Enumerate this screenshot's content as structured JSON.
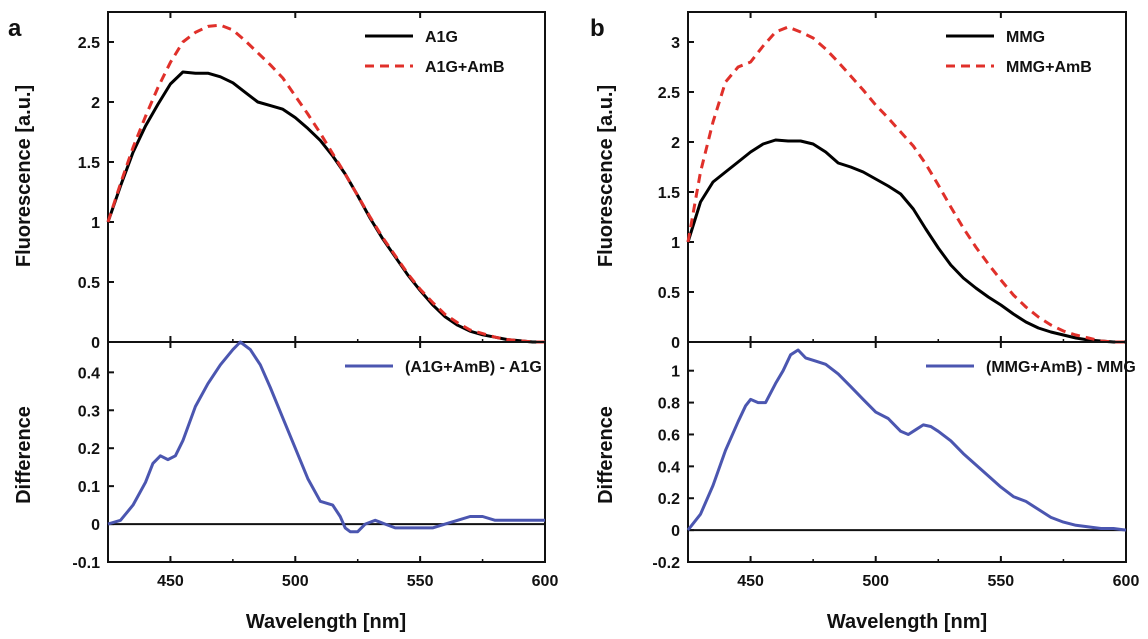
{
  "chart_data": [
    {
      "panel": "a",
      "type": "line",
      "subplot": "top",
      "xlabel": "",
      "ylabel": "Fluorescence [a.u.]",
      "xlim": [
        425,
        600
      ],
      "ylim": [
        0,
        2.75
      ],
      "yticks": [
        "0",
        "0.5",
        "1",
        "1.5",
        "2",
        "2.5"
      ],
      "xticks": [
        "450",
        "500",
        "550",
        "600"
      ],
      "legend_position": "top-right",
      "series": [
        {
          "name": "A1G",
          "color": "#000000",
          "dash": "solid",
          "x": [
            425,
            430,
            435,
            440,
            445,
            450,
            455,
            460,
            465,
            470,
            475,
            480,
            485,
            490,
            495,
            500,
            505,
            510,
            515,
            520,
            525,
            530,
            535,
            540,
            545,
            550,
            555,
            560,
            565,
            570,
            575,
            580,
            585,
            590,
            595,
            600
          ],
          "y": [
            1.0,
            1.3,
            1.58,
            1.8,
            1.98,
            2.15,
            2.25,
            2.24,
            2.24,
            2.21,
            2.16,
            2.08,
            2.0,
            1.97,
            1.94,
            1.87,
            1.78,
            1.68,
            1.55,
            1.4,
            1.22,
            1.03,
            0.86,
            0.71,
            0.56,
            0.43,
            0.31,
            0.21,
            0.14,
            0.09,
            0.06,
            0.04,
            0.02,
            0.01,
            0.0,
            0.0
          ]
        },
        {
          "name": "A1G+AmB",
          "color": "#e0302a",
          "dash": "dashed",
          "x": [
            425,
            430,
            435,
            440,
            445,
            450,
            455,
            460,
            465,
            470,
            475,
            480,
            485,
            490,
            495,
            500,
            505,
            510,
            515,
            520,
            525,
            530,
            535,
            540,
            545,
            550,
            555,
            560,
            565,
            570,
            575,
            580,
            585,
            590,
            595,
            600
          ],
          "y": [
            1.0,
            1.32,
            1.62,
            1.88,
            2.12,
            2.33,
            2.5,
            2.58,
            2.63,
            2.64,
            2.6,
            2.51,
            2.41,
            2.31,
            2.2,
            2.05,
            1.9,
            1.74,
            1.57,
            1.4,
            1.22,
            1.04,
            0.87,
            0.72,
            0.57,
            0.44,
            0.33,
            0.23,
            0.16,
            0.1,
            0.07,
            0.04,
            0.02,
            0.01,
            0.0,
            0.0
          ]
        }
      ]
    },
    {
      "panel": "a",
      "type": "line",
      "subplot": "bottom",
      "xlabel": "Wavelength [nm]",
      "ylabel": "Difference",
      "xlim": [
        425,
        600
      ],
      "ylim": [
        -0.1,
        0.48
      ],
      "yticks": [
        "-0.1",
        "0",
        "0.1",
        "0.2",
        "0.3",
        "0.4"
      ],
      "xticks": [
        "450",
        "500",
        "550",
        "600"
      ],
      "legend_position": "top-right",
      "series": [
        {
          "name": "(A1G+AmB) - A1G",
          "color": "#4b56b0",
          "dash": "solid",
          "x": [
            425,
            430,
            435,
            440,
            443,
            446,
            449,
            452,
            455,
            460,
            465,
            470,
            475,
            478,
            482,
            486,
            490,
            495,
            500,
            505,
            510,
            515,
            518,
            520,
            522,
            525,
            528,
            532,
            536,
            540,
            545,
            550,
            555,
            560,
            565,
            570,
            575,
            580,
            585,
            590,
            595,
            600
          ],
          "y": [
            0.0,
            0.01,
            0.05,
            0.11,
            0.16,
            0.18,
            0.17,
            0.18,
            0.22,
            0.31,
            0.37,
            0.42,
            0.46,
            0.48,
            0.46,
            0.42,
            0.36,
            0.28,
            0.2,
            0.12,
            0.06,
            0.05,
            0.02,
            -0.01,
            -0.02,
            -0.02,
            0.0,
            0.01,
            0.0,
            -0.01,
            -0.01,
            -0.01,
            -0.01,
            0.0,
            0.01,
            0.02,
            0.02,
            0.01,
            0.01,
            0.01,
            0.01,
            0.01
          ]
        }
      ]
    },
    {
      "panel": "b",
      "type": "line",
      "subplot": "top",
      "xlabel": "",
      "ylabel": "Fluorescence [a.u.]",
      "xlim": [
        425,
        600
      ],
      "ylim": [
        0,
        3.3
      ],
      "yticks": [
        "0",
        "0.5",
        "1",
        "1.5",
        "2",
        "2.5",
        "3"
      ],
      "xticks": [
        "450",
        "500",
        "550",
        "600"
      ],
      "legend_position": "top-right",
      "series": [
        {
          "name": "MMG",
          "color": "#000000",
          "dash": "solid",
          "x": [
            425,
            430,
            435,
            440,
            445,
            450,
            455,
            460,
            465,
            470,
            475,
            480,
            485,
            490,
            495,
            500,
            505,
            510,
            515,
            520,
            525,
            530,
            535,
            540,
            545,
            550,
            555,
            560,
            565,
            570,
            575,
            580,
            585,
            590,
            595,
            600
          ],
          "y": [
            1.0,
            1.4,
            1.6,
            1.7,
            1.8,
            1.9,
            1.98,
            2.02,
            2.01,
            2.01,
            1.98,
            1.9,
            1.79,
            1.75,
            1.7,
            1.63,
            1.56,
            1.48,
            1.33,
            1.13,
            0.94,
            0.77,
            0.64,
            0.54,
            0.45,
            0.37,
            0.28,
            0.2,
            0.14,
            0.1,
            0.07,
            0.04,
            0.02,
            0.01,
            0.0,
            0.0
          ]
        },
        {
          "name": "MMG+AmB",
          "color": "#e0302a",
          "dash": "dashed",
          "x": [
            425,
            430,
            435,
            440,
            445,
            450,
            455,
            460,
            465,
            470,
            475,
            480,
            485,
            490,
            495,
            500,
            505,
            510,
            515,
            520,
            525,
            530,
            535,
            540,
            545,
            550,
            555,
            560,
            565,
            570,
            575,
            580,
            585,
            590,
            595,
            600
          ],
          "y": [
            1.0,
            1.7,
            2.2,
            2.6,
            2.75,
            2.8,
            2.96,
            3.1,
            3.15,
            3.1,
            3.04,
            2.93,
            2.8,
            2.66,
            2.52,
            2.37,
            2.24,
            2.1,
            1.96,
            1.78,
            1.57,
            1.35,
            1.14,
            0.95,
            0.78,
            0.62,
            0.47,
            0.35,
            0.25,
            0.17,
            0.11,
            0.07,
            0.04,
            0.01,
            0.0,
            0.0
          ]
        }
      ]
    },
    {
      "panel": "b",
      "type": "line",
      "subplot": "bottom",
      "xlabel": "Wavelength [nm]",
      "ylabel": "Difference",
      "xlim": [
        425,
        600
      ],
      "ylim": [
        -0.2,
        1.18
      ],
      "yticks": [
        "-0.2",
        "0",
        "0.2",
        "0.4",
        "0.6",
        "0.8",
        "1"
      ],
      "xticks": [
        "450",
        "500",
        "550",
        "600"
      ],
      "legend_position": "top-right",
      "series": [
        {
          "name": "(MMG+AmB) - MMG",
          "color": "#4b56b0",
          "dash": "solid",
          "x": [
            425,
            430,
            435,
            440,
            445,
            448,
            450,
            453,
            456,
            460,
            463,
            466,
            469,
            472,
            476,
            480,
            485,
            490,
            495,
            500,
            505,
            510,
            513,
            516,
            519,
            522,
            525,
            530,
            535,
            540,
            545,
            550,
            555,
            560,
            565,
            570,
            575,
            580,
            585,
            590,
            595,
            600
          ],
          "y": [
            0.0,
            0.1,
            0.28,
            0.5,
            0.68,
            0.78,
            0.82,
            0.8,
            0.8,
            0.92,
            1.0,
            1.1,
            1.13,
            1.08,
            1.06,
            1.04,
            0.98,
            0.9,
            0.82,
            0.74,
            0.7,
            0.62,
            0.6,
            0.63,
            0.66,
            0.65,
            0.62,
            0.56,
            0.48,
            0.41,
            0.34,
            0.27,
            0.21,
            0.18,
            0.13,
            0.08,
            0.05,
            0.03,
            0.02,
            0.01,
            0.01,
            0.0
          ]
        }
      ]
    }
  ],
  "panels": {
    "a": {
      "letter": "a",
      "top_ylabel": "Fluorescence [a.u.]",
      "bottom_ylabel": "Difference",
      "xlabel": "Wavelength [nm]",
      "legend_top": [
        "A1G",
        "A1G+AmB"
      ],
      "legend_bottom": [
        "(A1G+AmB) - A1G"
      ]
    },
    "b": {
      "letter": "b",
      "top_ylabel": "Fluorescence [a.u.]",
      "bottom_ylabel": "Difference",
      "xlabel": "Wavelength [nm]",
      "legend_top": [
        "MMG",
        "MMG+AmB"
      ],
      "legend_bottom": [
        "(MMG+AmB) - MMG"
      ]
    }
  }
}
